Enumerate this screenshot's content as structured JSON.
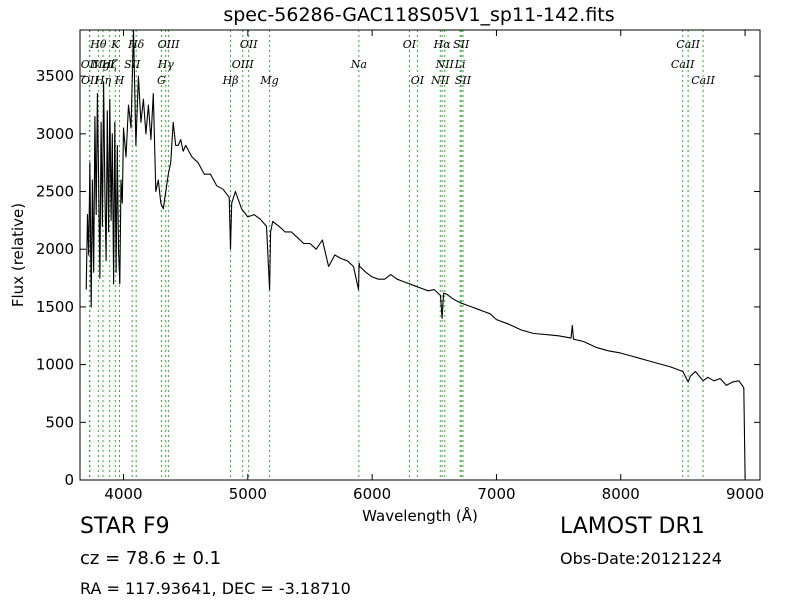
{
  "header": {
    "title": "spec-56286-GAC118S05V1_sp11-142.fits"
  },
  "info": {
    "star_class": "STAR   F9",
    "survey": "LAMOST DR1",
    "cz": "cz = 78.6 ± 0.1",
    "obs_date": "Obs-Date:20121224",
    "radec": "RA = 117.93641, DEC = -3.18710"
  },
  "chart_data": {
    "type": "line",
    "title": "spec-56286-GAC118S05V1_sp11-142.fits",
    "xlabel": "Wavelength (Å)",
    "ylabel": "Flux (relative)",
    "xlim": [
      3650,
      9120
    ],
    "ylim": [
      0,
      3900
    ],
    "xticks": [
      4000,
      5000,
      6000,
      7000,
      8000,
      9000
    ],
    "yticks": [
      0,
      500,
      1000,
      1500,
      2000,
      2500,
      3000,
      3500
    ],
    "grid": false,
    "line_color": "#000000",
    "marker_line_color": "#33aa33",
    "series": [
      {
        "x": [
          3700,
          3710,
          3720,
          3730,
          3740,
          3750,
          3760,
          3770,
          3780,
          3790,
          3800,
          3810,
          3820,
          3830,
          3840,
          3850,
          3860,
          3870,
          3880,
          3890,
          3900,
          3910,
          3920,
          3930,
          3940,
          3950,
          3960,
          3970,
          3980,
          3990,
          4000,
          4020,
          4040,
          4060,
          4080,
          4100,
          4120,
          4140,
          4160,
          4180,
          4200,
          4220,
          4240,
          4260,
          4280,
          4300,
          4320,
          4340,
          4360,
          4380,
          4400,
          4420,
          4440,
          4460,
          4480,
          4500,
          4550,
          4600,
          4650,
          4700,
          4750,
          4800,
          4850,
          4861,
          4870,
          4900,
          4950,
          5000,
          5050,
          5100,
          5150,
          5175,
          5183,
          5200,
          5250,
          5300,
          5350,
          5400,
          5450,
          5500,
          5550,
          5600,
          5650,
          5700,
          5750,
          5800,
          5850,
          5890,
          5895,
          5900,
          5950,
          6000,
          6050,
          6100,
          6150,
          6200,
          6250,
          6300,
          6350,
          6400,
          6450,
          6500,
          6550,
          6563,
          6575,
          6600,
          6650,
          6700,
          6750,
          6800,
          6850,
          6900,
          6950,
          7000,
          7100,
          7200,
          7300,
          7400,
          7500,
          7600,
          7610,
          7620,
          7700,
          7800,
          7900,
          8000,
          8100,
          8200,
          8300,
          8400,
          8500,
          8542,
          8560,
          8600,
          8662,
          8700,
          8750,
          8800,
          8850,
          8900,
          8950,
          8990,
          9000
        ],
        "y": [
          1650,
          2300,
          1950,
          2750,
          1500,
          2600,
          1800,
          3150,
          2300,
          3350,
          2600,
          1750,
          3100,
          2200,
          3450,
          2500,
          1900,
          3200,
          2150,
          3300,
          2250,
          3000,
          1700,
          3100,
          1800,
          2900,
          2000,
          1700,
          2600,
          2400,
          3050,
          2800,
          3250,
          3050,
          3900,
          2900,
          3500,
          3100,
          3300,
          3000,
          3250,
          2950,
          3350,
          2500,
          2600,
          2400,
          2350,
          2500,
          2650,
          2750,
          3100,
          2900,
          2900,
          2950,
          2850,
          2900,
          2800,
          2750,
          2650,
          2650,
          2550,
          2520,
          2450,
          2000,
          2400,
          2500,
          2350,
          2280,
          2300,
          2260,
          2200,
          1650,
          2150,
          2240,
          2200,
          2150,
          2150,
          2100,
          2050,
          2050,
          2000,
          2080,
          1850,
          1950,
          1920,
          1900,
          1850,
          1650,
          1880,
          1850,
          1800,
          1760,
          1740,
          1740,
          1780,
          1740,
          1720,
          1700,
          1680,
          1660,
          1640,
          1650,
          1600,
          1400,
          1620,
          1610,
          1570,
          1540,
          1520,
          1500,
          1480,
          1460,
          1440,
          1390,
          1350,
          1300,
          1270,
          1260,
          1250,
          1230,
          1340,
          1220,
          1200,
          1150,
          1120,
          1100,
          1070,
          1040,
          1010,
          980,
          940,
          850,
          900,
          940,
          860,
          890,
          860,
          880,
          820,
          850,
          860,
          800,
          20
        ]
      }
    ],
    "lines": [
      {
        "name": "Hθ",
        "wl": 3798,
        "row": 0
      },
      {
        "name": "K",
        "wl": 3934,
        "row": 0
      },
      {
        "name": "Hδ",
        "wl": 4102,
        "row": 0
      },
      {
        "name": "OIII",
        "wl": 4363,
        "row": 0
      },
      {
        "name": "OII",
        "wl": 5007,
        "row": 0
      },
      {
        "name": "OI",
        "wl": 6300,
        "row": 0
      },
      {
        "name": "Hα",
        "wl": 6563,
        "row": 0
      },
      {
        "name": "SII",
        "wl": 6717,
        "row": 0
      },
      {
        "name": "CaII",
        "wl": 8542,
        "row": 0
      },
      {
        "name": "OII",
        "wl": 3727,
        "row": 1
      },
      {
        "name": "Hζ",
        "wl": 3889,
        "row": 1
      },
      {
        "name": "MgI",
        "wl": 3835,
        "row": 1
      },
      {
        "name": "SII",
        "wl": 4070,
        "row": 1
      },
      {
        "name": "Hγ",
        "wl": 4340,
        "row": 1
      },
      {
        "name": "OIII",
        "wl": 4959,
        "row": 1
      },
      {
        "name": "NII",
        "wl": 6584,
        "row": 1
      },
      {
        "name": "Li",
        "wl": 6708,
        "row": 1
      },
      {
        "name": "CaII",
        "wl": 8498,
        "row": 1
      },
      {
        "name": "OII",
        "wl": 3729,
        "row": 2
      },
      {
        "name": "Hη",
        "wl": 3835,
        "row": 2
      },
      {
        "name": "H",
        "wl": 3968,
        "row": 2
      },
      {
        "name": "G",
        "wl": 4305,
        "row": 2
      },
      {
        "name": "Hβ",
        "wl": 4861,
        "row": 2
      },
      {
        "name": "Mg",
        "wl": 5175,
        "row": 2
      },
      {
        "name": "Na",
        "wl": 5893,
        "row": 1
      },
      {
        "name": "OI",
        "wl": 6364,
        "row": 2
      },
      {
        "name": "NII",
        "wl": 6548,
        "row": 2
      },
      {
        "name": "SII",
        "wl": 6731,
        "row": 2
      },
      {
        "name": "CaII",
        "wl": 8662,
        "row": 2
      }
    ]
  }
}
